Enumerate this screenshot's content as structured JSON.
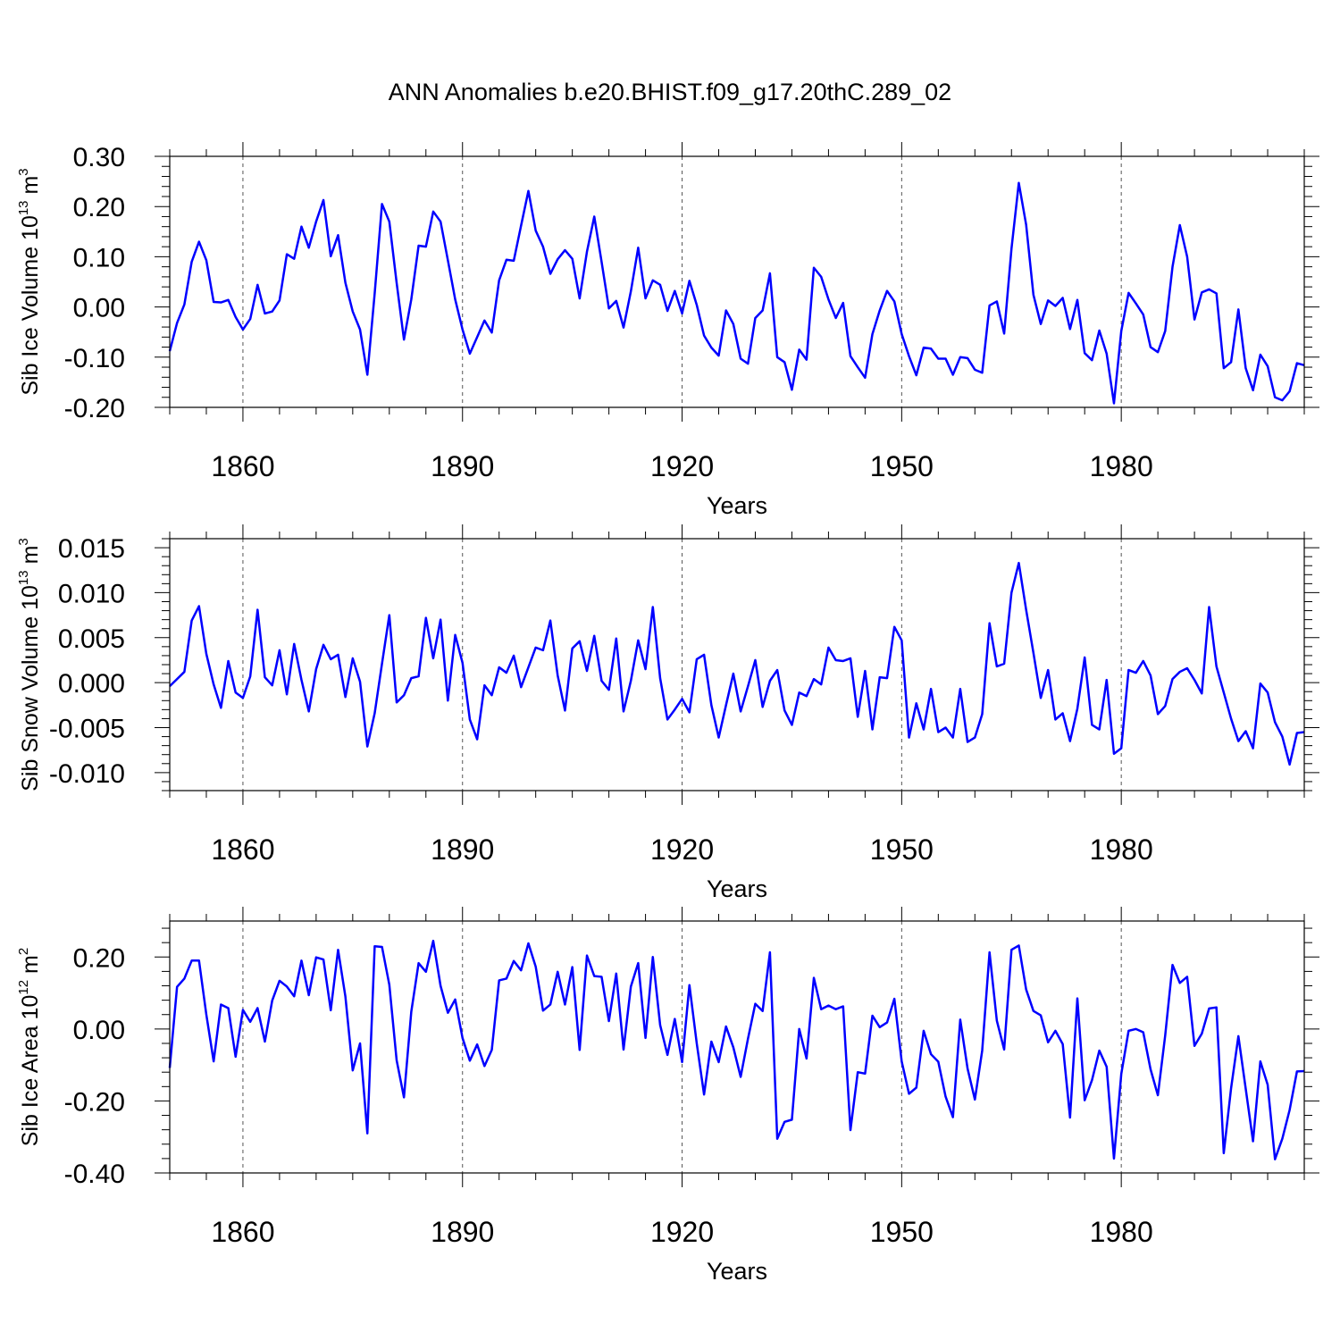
{
  "chart_data": {
    "title": "ANN Anomalies b.e20.BHIST.f09_g17.20thC.289_02",
    "charts": [
      {
        "type": "line",
        "ylabel": "Sib Ice Volume",
        "yunit_base": "10",
        "yunit_exp": "13",
        "yunit_tail": "m",
        "yunit_tail_exp": "3",
        "xlabel": "Years",
        "xlim": [
          1850,
          2005
        ],
        "ylim": [
          -0.2,
          0.3
        ],
        "yticks": [
          -0.2,
          -0.1,
          0.0,
          0.1,
          0.2,
          0.3
        ],
        "ytick_labels": [
          "-0.20",
          "-0.10",
          "0.00",
          "0.10",
          "0.20",
          "0.30"
        ],
        "xticks": [
          1860,
          1890,
          1920,
          1950,
          1980
        ],
        "xtick_labels": [
          "1860",
          "1890",
          "1920",
          "1950",
          "1980"
        ],
        "line_color": "#0000ff",
        "start_year": 1850,
        "values": [
          -0.088,
          -0.032,
          0.005,
          0.09,
          0.13,
          0.093,
          0.01,
          0.009,
          0.014,
          -0.02,
          -0.045,
          -0.024,
          0.044,
          -0.013,
          -0.009,
          0.013,
          0.105,
          0.096,
          0.16,
          0.118,
          0.17,
          0.213,
          0.101,
          0.143,
          0.048,
          -0.009,
          -0.045,
          -0.135,
          0.027,
          0.205,
          0.17,
          0.048,
          -0.065,
          0.015,
          0.122,
          0.12,
          0.19,
          0.17,
          0.093,
          0.015,
          -0.045,
          -0.093,
          -0.06,
          -0.027,
          -0.051,
          0.053,
          0.094,
          0.092,
          0.162,
          0.231,
          0.152,
          0.12,
          0.066,
          0.095,
          0.113,
          0.096,
          0.017,
          0.11,
          0.18,
          0.09,
          -0.003,
          0.012,
          -0.041,
          0.031,
          0.118,
          0.017,
          0.053,
          0.044,
          -0.008,
          0.032,
          -0.013,
          0.052,
          0.004,
          -0.057,
          -0.081,
          -0.097,
          -0.007,
          -0.034,
          -0.103,
          -0.113,
          -0.022,
          -0.007,
          0.067,
          -0.1,
          -0.11,
          -0.165,
          -0.085,
          -0.105,
          0.078,
          0.06,
          0.015,
          -0.022,
          0.008,
          -0.098,
          -0.12,
          -0.141,
          -0.054,
          -0.007,
          0.032,
          0.011,
          -0.054,
          -0.098,
          -0.136,
          -0.081,
          -0.083,
          -0.103,
          -0.103,
          -0.135,
          -0.1,
          -0.102,
          -0.125,
          -0.131,
          0.003,
          0.011,
          -0.053,
          0.116,
          0.247,
          0.164,
          0.024,
          -0.034,
          0.013,
          0.002,
          0.018,
          -0.044,
          0.014,
          -0.092,
          -0.106,
          -0.047,
          -0.093,
          -0.192,
          -0.048,
          0.028,
          0.007,
          -0.015,
          -0.08,
          -0.09,
          -0.048,
          0.08,
          0.163,
          0.1,
          -0.025,
          0.029,
          0.035,
          0.027,
          -0.122,
          -0.11,
          -0.005,
          -0.122,
          -0.166,
          -0.095,
          -0.118,
          -0.18,
          -0.186,
          -0.168,
          -0.112,
          -0.116
        ]
      },
      {
        "type": "line",
        "ylabel": "Sib Snow Volume",
        "yunit_base": "10",
        "yunit_exp": "13",
        "yunit_tail": "m",
        "yunit_tail_exp": "3",
        "xlabel": "Years",
        "xlim": [
          1850,
          2005
        ],
        "ylim": [
          -0.012,
          0.016
        ],
        "yticks": [
          -0.01,
          -0.005,
          0.0,
          0.005,
          0.01,
          0.015
        ],
        "ytick_labels": [
          "-0.010",
          "-0.005",
          "0.000",
          "0.005",
          "0.010",
          "0.015"
        ],
        "xticks": [
          1860,
          1890,
          1920,
          1950,
          1980
        ],
        "xtick_labels": [
          "1860",
          "1890",
          "1920",
          "1950",
          "1980"
        ],
        "line_color": "#0000ff",
        "start_year": 1850,
        "values": [
          -0.0004,
          0.0004,
          0.0012,
          0.0069,
          0.0085,
          0.0032,
          -0.0002,
          -0.0028,
          0.0024,
          -0.0011,
          -0.0017,
          0.0007,
          0.0081,
          0.0006,
          -0.0003,
          0.0036,
          -0.0013,
          0.0043,
          0.0003,
          -0.0032,
          0.0015,
          0.0042,
          0.0026,
          0.0031,
          -0.0016,
          0.0027,
          0.0001,
          -0.0071,
          -0.0034,
          0.0021,
          0.0075,
          -0.0022,
          -0.0014,
          0.0005,
          0.0007,
          0.0072,
          0.0027,
          0.007,
          -0.002,
          0.0053,
          0.0022,
          -0.0041,
          -0.0063,
          -0.0003,
          -0.0014,
          0.0017,
          0.0011,
          0.003,
          -0.0005,
          0.0017,
          0.0039,
          0.0036,
          0.0069,
          0.0008,
          -0.0031,
          0.0038,
          0.0046,
          0.0013,
          0.0052,
          0.0002,
          -0.0008,
          0.0049,
          -0.0032,
          0.0002,
          0.0047,
          0.0015,
          0.0084,
          0.0005,
          -0.0041,
          -0.003,
          -0.0018,
          -0.0033,
          0.0026,
          0.0031,
          -0.0025,
          -0.0061,
          -0.0025,
          0.001,
          -0.0032,
          -0.0004,
          0.0025,
          -0.0027,
          0.0002,
          0.0014,
          -0.0031,
          -0.0047,
          -0.0011,
          -0.0015,
          0.0004,
          -0.0002,
          0.0039,
          0.0025,
          0.0024,
          0.0027,
          -0.0038,
          0.0013,
          -0.0052,
          0.0006,
          0.0005,
          0.0062,
          0.0047,
          -0.0061,
          -0.0023,
          -0.0052,
          -0.0007,
          -0.0055,
          -0.005,
          -0.0061,
          -0.0007,
          -0.0066,
          -0.0061,
          -0.0035,
          0.0066,
          0.0018,
          0.0021,
          0.01,
          0.0133,
          0.0081,
          0.0033,
          -0.0017,
          0.0014,
          -0.0041,
          -0.0034,
          -0.0065,
          -0.0029,
          0.0028,
          -0.0047,
          -0.0052,
          0.0003,
          -0.0079,
          -0.0073,
          0.0014,
          0.0011,
          0.0024,
          0.0008,
          -0.0035,
          -0.0026,
          0.0004,
          0.0012,
          0.0016,
          0.0003,
          -0.0012,
          0.0084,
          0.0018,
          -0.0011,
          -0.004,
          -0.0065,
          -0.0054,
          -0.0073,
          -0.0001,
          -0.0011,
          -0.0044,
          -0.006,
          -0.0091,
          -0.0056,
          -0.0055
        ]
      },
      {
        "type": "line",
        "ylabel": "Sib Ice Area",
        "yunit_base": "10",
        "yunit_exp": "12",
        "yunit_tail": "m",
        "yunit_tail_exp": "2",
        "xlabel": "Years",
        "xlim": [
          1850,
          2005
        ],
        "ylim": [
          -0.4,
          0.3
        ],
        "yticks": [
          -0.4,
          -0.2,
          0.0,
          0.2
        ],
        "ytick_labels": [
          "-0.40",
          "-0.20",
          "0.00",
          "0.20"
        ],
        "xticks": [
          1860,
          1890,
          1920,
          1950,
          1980
        ],
        "xtick_labels": [
          "1860",
          "1890",
          "1920",
          "1950",
          "1980"
        ],
        "line_color": "#0000ff",
        "start_year": 1850,
        "values": [
          -0.108,
          0.117,
          0.14,
          0.19,
          0.19,
          0.04,
          -0.09,
          0.068,
          0.058,
          -0.077,
          0.053,
          0.02,
          0.058,
          -0.035,
          0.079,
          0.134,
          0.118,
          0.091,
          0.19,
          0.094,
          0.199,
          0.193,
          0.052,
          0.22,
          0.09,
          -0.115,
          -0.04,
          -0.29,
          0.23,
          0.228,
          0.123,
          -0.087,
          -0.19,
          0.048,
          0.183,
          0.159,
          0.245,
          0.12,
          0.045,
          0.082,
          -0.025,
          -0.088,
          -0.043,
          -0.103,
          -0.058,
          0.135,
          0.14,
          0.189,
          0.163,
          0.238,
          0.173,
          0.051,
          0.068,
          0.159,
          0.068,
          0.172,
          -0.058,
          0.204,
          0.147,
          0.145,
          0.022,
          0.154,
          -0.057,
          0.118,
          0.183,
          -0.025,
          0.2,
          0.011,
          -0.072,
          0.028,
          -0.092,
          0.122,
          -0.04,
          -0.182,
          -0.035,
          -0.092,
          0.007,
          -0.051,
          -0.133,
          -0.027,
          0.07,
          0.05,
          0.213,
          -0.305,
          -0.258,
          -0.252,
          0.0,
          -0.082,
          0.142,
          0.055,
          0.065,
          0.055,
          0.063,
          -0.281,
          -0.12,
          -0.124,
          0.037,
          0.005,
          0.018,
          0.084,
          -0.09,
          -0.18,
          -0.163,
          -0.005,
          -0.07,
          -0.091,
          -0.188,
          -0.245,
          0.026,
          -0.11,
          -0.196,
          -0.06,
          0.213,
          0.023,
          -0.057,
          0.22,
          0.232,
          0.11,
          0.05,
          0.038,
          -0.037,
          -0.005,
          -0.042,
          -0.246,
          0.085,
          -0.198,
          -0.142,
          -0.06,
          -0.105,
          -0.36,
          -0.125,
          -0.005,
          0.0,
          -0.009,
          -0.112,
          -0.184,
          -0.018,
          0.178,
          0.128,
          0.145,
          -0.047,
          -0.013,
          0.057,
          0.06,
          -0.345,
          -0.165,
          -0.02,
          -0.166,
          -0.312,
          -0.09,
          -0.155,
          -0.362,
          -0.305,
          -0.225,
          -0.118,
          -0.117
        ]
      }
    ]
  }
}
